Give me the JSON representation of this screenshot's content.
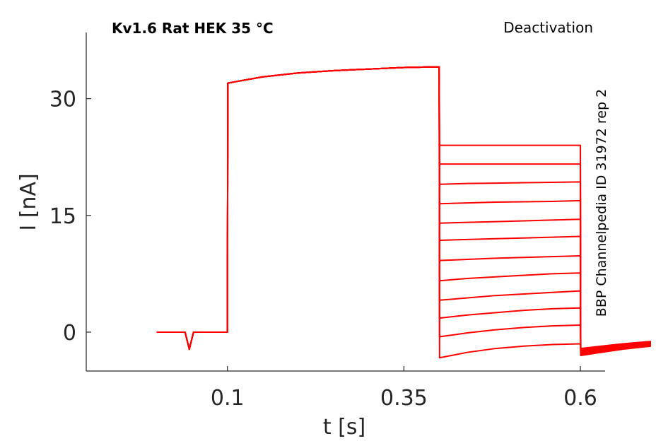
{
  "chart_data": {
    "type": "line",
    "title": "Kv1.6  Rat  HEK  35 °C",
    "protocol_label": "Deactivation",
    "side_label": "BBP Channelpedia ID 31972 rep 2",
    "xlabel": "t [s]",
    "ylabel": "I [nA]",
    "xlim": [
      -0.1,
      0.635
    ],
    "ylim": [
      -5,
      38.5
    ],
    "x_ticks": [
      {
        "value": 0.1,
        "label": "0.1"
      },
      {
        "value": 0.35,
        "label": "0.35"
      },
      {
        "value": 0.6,
        "label": "0.6"
      }
    ],
    "y_ticks": [
      {
        "value": 0,
        "label": "0"
      },
      {
        "value": 15,
        "label": "15"
      },
      {
        "value": 30,
        "label": "30"
      }
    ],
    "grid": false,
    "color": "#ff0000",
    "activation_step": {
      "x": [
        0.0,
        0.04,
        0.046,
        0.052,
        0.1,
        0.1005,
        0.15,
        0.2,
        0.25,
        0.3,
        0.35,
        0.4
      ],
      "y": [
        0,
        0,
        -2.2,
        0,
        0,
        32,
        32.8,
        33.3,
        33.6,
        33.8,
        34.0,
        34.1
      ]
    },
    "tail_time_points": [
      0.4,
      0.44,
      0.48,
      0.52,
      0.56,
      0.6
    ],
    "series": [
      {
        "values": [
          24.0,
          24.0,
          24.0,
          24.0,
          24.0,
          24.0
        ]
      },
      {
        "values": [
          21.6,
          21.6,
          21.6,
          21.6,
          21.6,
          21.6
        ]
      },
      {
        "values": [
          19.0,
          19.1,
          19.15,
          19.2,
          19.25,
          19.3
        ]
      },
      {
        "values": [
          16.5,
          16.6,
          16.7,
          16.75,
          16.8,
          16.9
        ]
      },
      {
        "values": [
          14.0,
          14.1,
          14.2,
          14.3,
          14.4,
          14.5
        ]
      },
      {
        "values": [
          11.8,
          11.9,
          12.0,
          12.1,
          12.2,
          12.3
        ]
      },
      {
        "values": [
          9.2,
          9.35,
          9.5,
          9.6,
          9.7,
          9.8
        ]
      },
      {
        "values": [
          6.6,
          6.9,
          7.1,
          7.3,
          7.5,
          7.6
        ]
      },
      {
        "values": [
          4.1,
          4.4,
          4.7,
          4.9,
          5.1,
          5.3
        ]
      },
      {
        "values": [
          1.8,
          2.2,
          2.5,
          2.8,
          3.0,
          3.1
        ]
      },
      {
        "values": [
          -0.6,
          -0.1,
          0.3,
          0.6,
          0.8,
          0.9
        ]
      },
      {
        "values": [
          -3.3,
          -2.6,
          -2.1,
          -1.8,
          -1.6,
          -1.5
        ]
      }
    ],
    "final_tail": {
      "x": [
        0.6,
        0.6005,
        0.63,
        0.66,
        0.7
      ],
      "y_upper": [
        -1.5,
        -2.1,
        -1.8,
        -1.5,
        -1.2
      ],
      "y_lower": [
        -1.5,
        -3.0,
        -2.6,
        -2.2,
        -1.8
      ]
    }
  }
}
